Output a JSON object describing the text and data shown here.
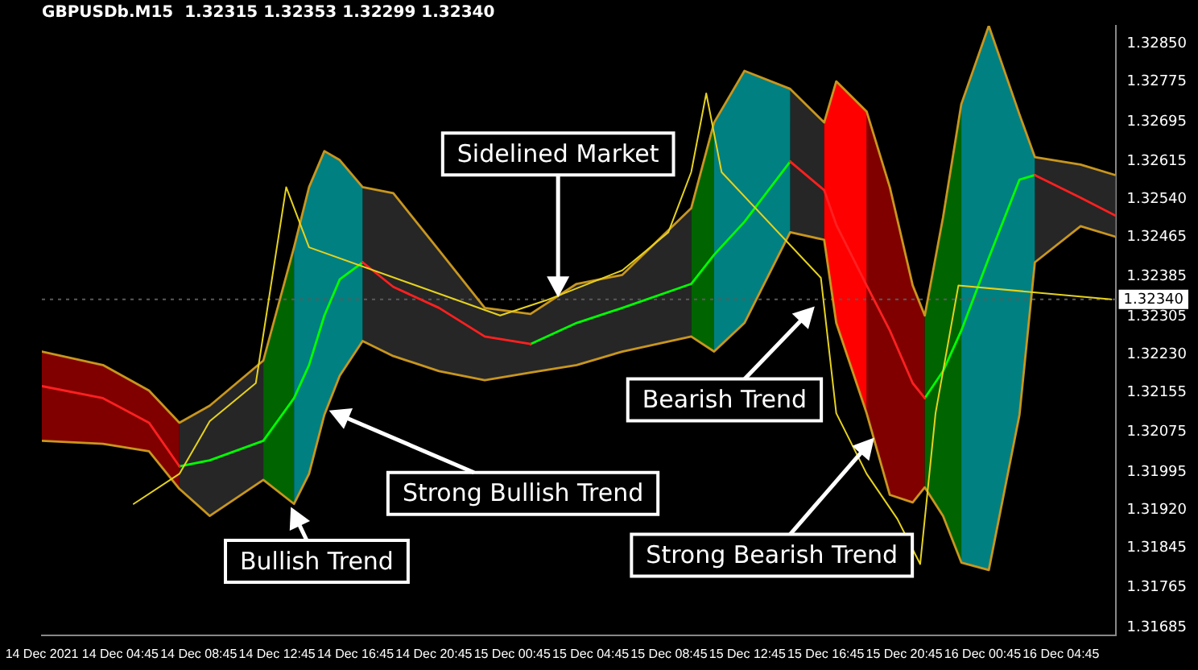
{
  "chart_data": {
    "type": "line",
    "title": "GBPUSDb.M15  1.32315 1.32353 1.32299 1.32340",
    "x": [
      "2021-12-14T00:45",
      "2021-12-14T03:52",
      "2021-12-14T06:13",
      "2021-12-14T07:46",
      "2021-12-14T09:19",
      "2021-12-14T12:03",
      "2021-12-14T13:37",
      "2021-12-14T14:23",
      "2021-12-14T15:10",
      "2021-12-14T15:57",
      "2021-12-14T17:07",
      "2021-12-14T18:41",
      "2021-12-14T21:01",
      "2021-12-14T23:21",
      "2021-12-15T01:41",
      "2021-12-15T04:02",
      "2021-12-15T06:22",
      "2021-12-15T09:53",
      "2021-12-15T11:03",
      "2021-12-15T12:36",
      "2021-12-15T14:56",
      "2021-12-15T16:40",
      "2021-12-15T17:17",
      "2021-12-15T18:50",
      "2021-12-15T20:01",
      "2021-12-15T21:11",
      "2021-12-15T21:48",
      "2021-12-15T22:44",
      "2021-12-15T23:40",
      "2021-12-16T01:04",
      "2021-12-16T02:38",
      "2021-12-16T03:25",
      "2021-12-16T05:45",
      "2021-12-16T07:32"
    ],
    "series": [
      {
        "type": "area",
        "color": "#800000",
        "values": [
          1.32236,
          1.32209,
          1.32158,
          1.32094,
          null,
          null,
          null,
          null,
          null,
          null,
          null,
          null,
          null,
          null,
          null,
          null,
          null,
          null,
          null,
          null,
          null,
          null,
          null,
          1.32715,
          1.32564,
          1.32368,
          1.32308,
          null,
          null,
          null,
          null,
          null,
          null,
          null
        ]
      },
      {
        "type": "area",
        "color": "#262626",
        "values": [
          null,
          null,
          null,
          1.32094,
          1.32128,
          1.32218,
          null,
          null,
          null,
          null,
          1.32564,
          1.32552,
          1.32438,
          1.32323,
          1.32311,
          1.32371,
          1.32389,
          1.32522,
          null,
          null,
          1.3276,
          1.32693,
          null,
          null,
          null,
          null,
          null,
          null,
          null,
          null,
          null,
          1.32624,
          1.32609,
          1.32588
        ]
      },
      {
        "type": "area",
        "color": "#006400",
        "values": [
          null,
          null,
          null,
          null,
          null,
          1.32218,
          1.32444,
          null,
          null,
          null,
          null,
          null,
          null,
          null,
          null,
          null,
          null,
          1.32522,
          1.32693,
          null,
          null,
          null,
          null,
          null,
          null,
          null,
          1.32308,
          1.32504,
          1.3273,
          null,
          null,
          null,
          null,
          null
        ]
      },
      {
        "type": "area",
        "color": "#008080",
        "values": [
          null,
          null,
          null,
          null,
          null,
          null,
          1.32444,
          1.32564,
          1.32636,
          1.32618,
          1.32564,
          null,
          null,
          null,
          null,
          null,
          null,
          null,
          1.32693,
          1.32796,
          1.3276,
          null,
          null,
          null,
          null,
          null,
          null,
          null,
          1.3273,
          1.32886,
          1.32709,
          1.32624,
          null,
          null
        ]
      },
      {
        "type": "area",
        "color": "#ff0000",
        "values": [
          null,
          null,
          null,
          null,
          null,
          null,
          null,
          null,
          null,
          null,
          null,
          null,
          null,
          null,
          null,
          null,
          null,
          null,
          null,
          null,
          null,
          1.32693,
          1.32775,
          1.32715,
          null,
          null,
          null,
          null,
          null,
          null,
          null,
          null,
          null,
          null
        ]
      },
      {
        "color": "#c8961e",
        "values": [
          1.32236,
          1.32209,
          1.32158,
          1.32094,
          1.32128,
          1.32218,
          1.32444,
          1.32564,
          1.32636,
          1.32618,
          1.32564,
          1.32552,
          1.32438,
          1.32323,
          1.32311,
          1.32371,
          1.32389,
          1.32522,
          1.32693,
          1.32796,
          1.3276,
          1.32693,
          1.32775,
          1.32715,
          1.32564,
          1.32368,
          1.32308,
          1.32504,
          1.3273,
          1.32886,
          1.32709,
          1.32624,
          1.32609,
          1.32588
        ]
      },
      {
        "color": "#c8961e",
        "values": [
          1.32058,
          1.32052,
          1.32037,
          1.31962,
          1.31908,
          1.3198,
          1.31932,
          1.31992,
          1.3211,
          1.32188,
          1.32257,
          1.32227,
          1.32197,
          1.32179,
          1.32194,
          1.32209,
          1.32236,
          1.32266,
          1.32236,
          1.32293,
          1.32474,
          1.32459,
          1.32293,
          1.32113,
          1.3195,
          1.31935,
          1.31965,
          1.31908,
          1.31815,
          1.318,
          1.3211,
          1.32414,
          1.32486,
          1.32465
        ]
      },
      {
        "color": "#00ff00",
        "values": [
          null,
          null,
          null,
          1.32007,
          1.32019,
          1.32058,
          1.32143,
          1.32209,
          1.32308,
          1.3238,
          1.32414,
          null,
          null,
          null,
          1.32251,
          1.32293,
          1.32323,
          1.32371,
          1.32429,
          1.32495,
          1.32615,
          null,
          null,
          null,
          null,
          null,
          1.32143,
          1.32197,
          1.32278,
          1.32423,
          1.32579,
          1.32588,
          null,
          null
        ]
      },
      {
        "color": "#ff2020",
        "values": [
          1.32167,
          1.32143,
          1.32094,
          1.32007,
          null,
          null,
          null,
          null,
          null,
          null,
          1.32414,
          1.32365,
          1.32323,
          1.32266,
          1.32251,
          null,
          null,
          null,
          null,
          null,
          1.32615,
          1.32558,
          1.32489,
          1.32368,
          1.32278,
          1.32173,
          1.32143,
          null,
          null,
          null,
          null,
          1.32588,
          1.32543,
          1.32507
        ]
      },
      {
        "color": "#e6d21e",
        "x": [
          "2021-12-14T05:26",
          "2021-12-14T07:46",
          "2021-12-14T09:19",
          "2021-12-14T11:40",
          "2021-12-14T13:13",
          "2021-12-14T14:23",
          "2021-12-15T00:08",
          "2021-12-15T02:28",
          "2021-12-15T06:22",
          "2021-12-15T08:43",
          "2021-12-15T09:53",
          "2021-12-15T10:39",
          "2021-12-15T11:26",
          "2021-12-15T16:30",
          "2021-12-15T17:17",
          "2021-12-15T18:50",
          "2021-12-15T20:24",
          "2021-12-15T21:34",
          "2021-12-15T22:21",
          "2021-12-15T23:31",
          "2021-12-16T07:19"
        ],
        "values": [
          1.31932,
          1.31992,
          1.32097,
          1.32173,
          1.32564,
          1.32444,
          1.32308,
          1.32338,
          1.32398,
          1.32474,
          1.32594,
          1.32751,
          1.32594,
          1.32383,
          1.32113,
          1.31992,
          1.31902,
          1.31812,
          1.32113,
          1.32368,
          1.3234
        ]
      }
    ],
    "ref_lines": [
      {
        "axis": "y",
        "value": 1.3234,
        "label": "1.32340",
        "color": "#5a5a5a",
        "line_style": "dotted"
      }
    ],
    "annotations": [
      "Sidelined Market",
      "Strong Bullish Trend",
      "Bullish Trend",
      "Bearish Trend",
      "Strong Bearish Trend"
    ],
    "xlim": [
      "2021-12-14T00:45",
      "2021-12-16T07:32"
    ],
    "xticks": [
      {
        "value": "2021-12-14T00:45",
        "label": "14 Dec 2021"
      },
      {
        "value": "2021-12-14T04:45",
        "label": "14 Dec 04:45"
      },
      {
        "value": "2021-12-14T08:45",
        "label": "14 Dec 08:45"
      },
      {
        "value": "2021-12-14T12:45",
        "label": "14 Dec 12:45"
      },
      {
        "value": "2021-12-14T16:45",
        "label": "14 Dec 16:45"
      },
      {
        "value": "2021-12-14T20:45",
        "label": "14 Dec 20:45"
      },
      {
        "value": "2021-12-15T00:45",
        "label": "15 Dec 00:45"
      },
      {
        "value": "2021-12-15T04:45",
        "label": "15 Dec 04:45"
      },
      {
        "value": "2021-12-15T08:45",
        "label": "15 Dec 08:45"
      },
      {
        "value": "2021-12-15T12:45",
        "label": "15 Dec 12:45"
      },
      {
        "value": "2021-12-15T16:45",
        "label": "15 Dec 16:45"
      },
      {
        "value": "2021-12-15T20:45",
        "label": "15 Dec 20:45"
      },
      {
        "value": "2021-12-16T00:45",
        "label": "16 Dec 00:45"
      },
      {
        "value": "2021-12-16T04:45",
        "label": "16 Dec 04:45"
      }
    ],
    "ylim": [
      1.3167,
      1.32886
    ],
    "yticks": [
      {
        "value": 1.3285,
        "label": "1.32850"
      },
      1.32775,
      1.32695,
      1.32615,
      {
        "value": 1.3254,
        "label": "1.32540"
      },
      1.32465,
      1.32385,
      1.32305,
      {
        "value": 1.3223,
        "label": "1.32230"
      },
      1.32155,
      1.32075,
      1.31995,
      {
        "value": 1.3192,
        "label": "1.31920"
      },
      1.31845,
      1.31765,
      1.31685
    ],
    "grid": false,
    "legend": false,
    "marker": "none",
    "line_style": "solid"
  }
}
